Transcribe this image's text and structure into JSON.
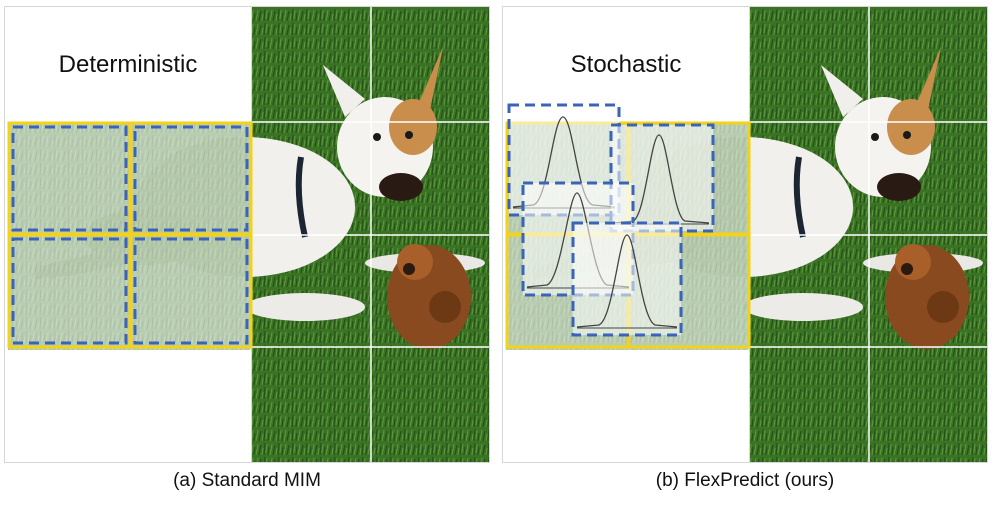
{
  "panels": [
    {
      "id": "a",
      "heading": "Deterministic",
      "caption": "(a) Standard MIM"
    },
    {
      "id": "b",
      "heading": "Stochastic",
      "caption": "(b) FlexPredict (ours)"
    }
  ],
  "colors": {
    "grass_dark": "#2f5b1c",
    "grass_mid": "#3f7a26",
    "dog_white": "#f2f1ee",
    "dog_tan": "#c28a4a",
    "toy_brown": "#8a4a1f",
    "mask_yellow": "#f2d21a",
    "mask_blue": "#3a64b8",
    "grid_line": "#ffffff"
  }
}
